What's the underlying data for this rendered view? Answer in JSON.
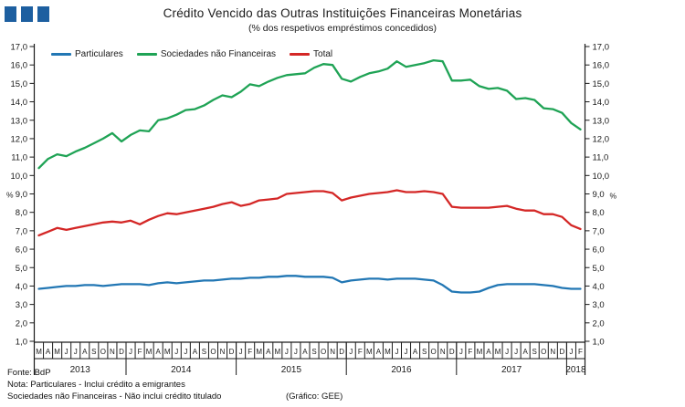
{
  "header": {
    "title": "Crédito Vencido das Outras Instituições Financeiras Monetárias",
    "subtitle": "(% dos respetivos empréstimos concedidos)",
    "logo_color": "#1d5fa0"
  },
  "footer": {
    "source": "Fonte: BdP",
    "note1": "Nota: Particulares - Inclui crédito a emigrantes",
    "note2": "Sociedades não Financeiras - Não inclui crédito titulado",
    "credit": "(Gráfico: GEE)"
  },
  "chart_data": {
    "type": "line",
    "title": "Crédito Vencido das Outras Instituições Financeiras Monetárias",
    "subtitle": "(% dos respetivos empréstimos concedidos)",
    "ylabel": "%",
    "ylim": [
      1.0,
      17.0
    ],
    "ytick_step": 1.0,
    "ytick_labels": [
      "1,0",
      "2,0",
      "3,0",
      "4,0",
      "5,0",
      "6,0",
      "7,0",
      "8,0",
      "9,0",
      "10,0",
      "11,0",
      "12,0",
      "13,0",
      "14,0",
      "15,0",
      "16,0",
      "17,0"
    ],
    "percent_label": "%",
    "grid": false,
    "legend_position": "top-left-inside",
    "x_months": [
      "M",
      "A",
      "M",
      "J",
      "J",
      "A",
      "S",
      "O",
      "N",
      "D",
      "J",
      "F",
      "M",
      "A",
      "M",
      "J",
      "J",
      "A",
      "S",
      "O",
      "N",
      "D",
      "J",
      "F",
      "M",
      "A",
      "M",
      "J",
      "J",
      "A",
      "S",
      "O",
      "N",
      "D",
      "J",
      "F",
      "M",
      "A",
      "M",
      "J",
      "J",
      "A",
      "S",
      "O",
      "N",
      "D",
      "J",
      "F",
      "M",
      "A",
      "M",
      "J",
      "J",
      "A",
      "S",
      "O",
      "N",
      "D",
      "J",
      "F"
    ],
    "x_years": [
      {
        "label": "2013",
        "months": 10
      },
      {
        "label": "2014",
        "months": 12
      },
      {
        "label": "2015",
        "months": 12
      },
      {
        "label": "2016",
        "months": 12
      },
      {
        "label": "2017",
        "months": 12
      },
      {
        "label": "2018",
        "months": 2
      }
    ],
    "series": [
      {
        "name": "Particulares",
        "color": "#2277b4",
        "values": [
          3.85,
          3.9,
          3.95,
          4.0,
          4.0,
          4.05,
          4.05,
          4.0,
          4.05,
          4.1,
          4.1,
          4.1,
          4.05,
          4.15,
          4.2,
          4.15,
          4.2,
          4.25,
          4.3,
          4.3,
          4.35,
          4.4,
          4.4,
          4.45,
          4.45,
          4.5,
          4.5,
          4.55,
          4.55,
          4.5,
          4.5,
          4.5,
          4.45,
          4.2,
          4.3,
          4.35,
          4.4,
          4.4,
          4.35,
          4.4,
          4.4,
          4.4,
          4.35,
          4.3,
          4.05,
          3.7,
          3.65,
          3.65,
          3.7,
          3.9,
          4.05,
          4.1,
          4.1,
          4.1,
          4.1,
          4.05,
          4.0,
          3.9,
          3.85,
          3.85
        ]
      },
      {
        "name": "Sociedades não Financeiras",
        "color": "#1fa355",
        "values": [
          10.4,
          10.9,
          11.15,
          11.05,
          11.3,
          11.5,
          11.75,
          12.0,
          12.3,
          11.85,
          12.2,
          12.45,
          12.4,
          13.0,
          13.1,
          13.3,
          13.55,
          13.6,
          13.8,
          14.1,
          14.35,
          14.25,
          14.55,
          14.95,
          14.85,
          15.1,
          15.3,
          15.45,
          15.5,
          15.55,
          15.85,
          16.05,
          16.0,
          15.25,
          15.1,
          15.35,
          15.55,
          15.65,
          15.8,
          16.2,
          15.9,
          16.0,
          16.1,
          16.25,
          16.2,
          15.15,
          15.15,
          15.2,
          14.85,
          14.7,
          14.75,
          14.6,
          14.15,
          14.2,
          14.1,
          13.65,
          13.6,
          13.4,
          12.85,
          12.5
        ]
      },
      {
        "name": "Total",
        "color": "#d42726",
        "values": [
          6.75,
          6.95,
          7.15,
          7.05,
          7.15,
          7.25,
          7.35,
          7.45,
          7.5,
          7.45,
          7.55,
          7.35,
          7.6,
          7.8,
          7.95,
          7.9,
          8.0,
          8.1,
          8.2,
          8.3,
          8.45,
          8.55,
          8.35,
          8.45,
          8.65,
          8.7,
          8.75,
          9.0,
          9.05,
          9.1,
          9.15,
          9.15,
          9.05,
          8.65,
          8.8,
          8.9,
          9.0,
          9.05,
          9.1,
          9.2,
          9.1,
          9.1,
          9.15,
          9.1,
          9.0,
          8.3,
          8.25,
          8.25,
          8.25,
          8.25,
          8.3,
          8.35,
          8.2,
          8.1,
          8.1,
          7.9,
          7.9,
          7.75,
          7.3,
          7.1
        ]
      }
    ]
  }
}
